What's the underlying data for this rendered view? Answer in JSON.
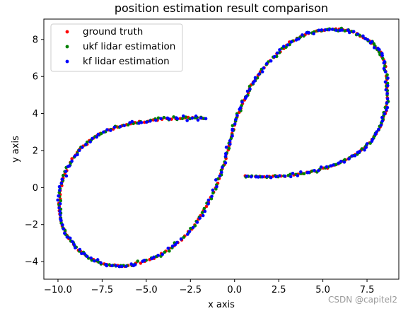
{
  "chart_data": {
    "type": "scatter",
    "title": "position estimation result comparison",
    "xlabel": "x axis",
    "ylabel": "y axis",
    "xlim": [
      -10.8,
      9.3
    ],
    "ylim": [
      -4.95,
      9.1
    ],
    "xticks": [
      -10.0,
      -7.5,
      -5.0,
      -2.5,
      0.0,
      2.5,
      5.0,
      7.5
    ],
    "xtick_labels": [
      "−10.0",
      "−7.5",
      "−5.0",
      "−2.5",
      "0.0",
      "2.5",
      "5.0",
      "7.5"
    ],
    "yticks": [
      -4,
      -2,
      0,
      2,
      4,
      6,
      8
    ],
    "ytick_labels": [
      "−4",
      "−2",
      "0",
      "2",
      "4",
      "6",
      "8"
    ],
    "grid": false,
    "legend_position": "top-left",
    "trajectory": {
      "description": "figure-eight path",
      "x": [
        0.6,
        2.0,
        3.5,
        5.0,
        6.3,
        7.4,
        8.2,
        8.6,
        8.6,
        8.3,
        7.5,
        6.3,
        5.0,
        3.6,
        2.4,
        1.3,
        0.6,
        0.0,
        -0.4,
        -0.9,
        -1.7,
        -2.8,
        -4.2,
        -5.7,
        -7.0,
        -8.2,
        -9.2,
        -9.8,
        -9.9,
        -9.6,
        -8.8,
        -7.6,
        -6.1,
        -4.5,
        -2.9,
        -1.7
      ],
      "y": [
        0.6,
        0.6,
        0.7,
        1.0,
        1.5,
        2.2,
        3.2,
        4.4,
        5.9,
        7.2,
        8.0,
        8.5,
        8.5,
        8.1,
        7.2,
        6.0,
        4.8,
        3.4,
        2.0,
        0.4,
        -1.2,
        -2.6,
        -3.6,
        -4.15,
        -4.2,
        -3.8,
        -3.0,
        -1.9,
        -0.6,
        0.8,
        2.0,
        2.9,
        3.4,
        3.65,
        3.75,
        3.75
      ]
    },
    "series": [
      {
        "name": "ground truth",
        "color": "#ff0000",
        "count": 220,
        "noise": 0.035,
        "phase": 0.0
      },
      {
        "name": "ukf lidar estimation",
        "color": "#008000",
        "count": 220,
        "noise": 0.07,
        "phase": 0.37
      },
      {
        "name": "kf lidar estimation",
        "color": "#0000ff",
        "count": 220,
        "noise": 0.09,
        "phase": 0.71
      }
    ]
  },
  "watermark": "CSDN @capitel2"
}
